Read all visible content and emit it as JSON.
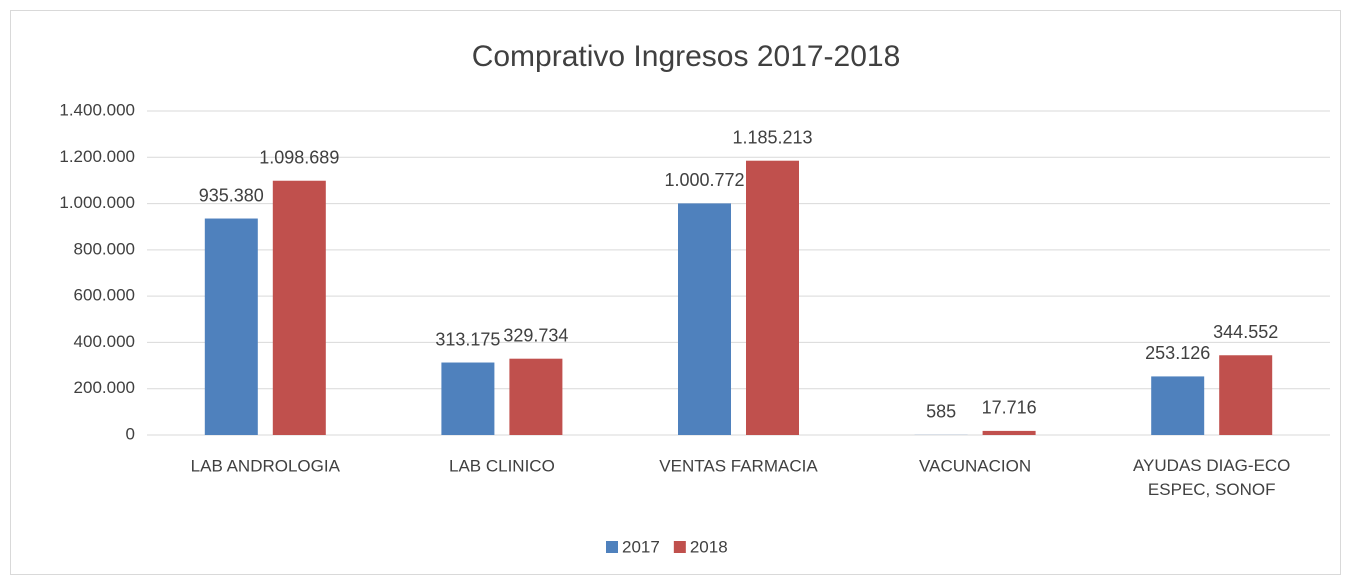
{
  "chart_data": {
    "type": "bar",
    "title": "Comprativo Ingresos 2017-2018",
    "categories": [
      "LAB ANDROLOGIA",
      "LAB CLINICO",
      "VENTAS FARMACIA",
      "VACUNACION",
      "AYUDAS DIAG-ECO ESPEC, SONOF"
    ],
    "series": [
      {
        "name": "2017",
        "color": "#4f81bd",
        "values": [
          935380,
          313175,
          1000772,
          585,
          253126
        ],
        "value_labels": [
          "935.380",
          "313.175",
          "1.000.772",
          "585",
          "253.126"
        ]
      },
      {
        "name": "2018",
        "color": "#c0504d",
        "values": [
          1098689,
          329734,
          1185213,
          17716,
          344552
        ],
        "value_labels": [
          "1.098.689",
          "329.734",
          "1.185.213",
          "17.716",
          "344.552"
        ]
      }
    ],
    "ylim": [
      0,
      1400000
    ],
    "yticks": [
      0,
      {
        "value": 200000,
        "label": "200.000"
      },
      {
        "value": 400000,
        "label": "400.000"
      },
      {
        "value": 600000,
        "label": "600.000"
      },
      {
        "value": 800000,
        "label": "800.000"
      },
      {
        "value": 1000000,
        "label": "1.000.000"
      },
      {
        "value": 1200000,
        "label": "1.200.000"
      },
      {
        "value": 1400000,
        "label": "1.400.000"
      }
    ],
    "grid": true,
    "legend": "bottom"
  }
}
